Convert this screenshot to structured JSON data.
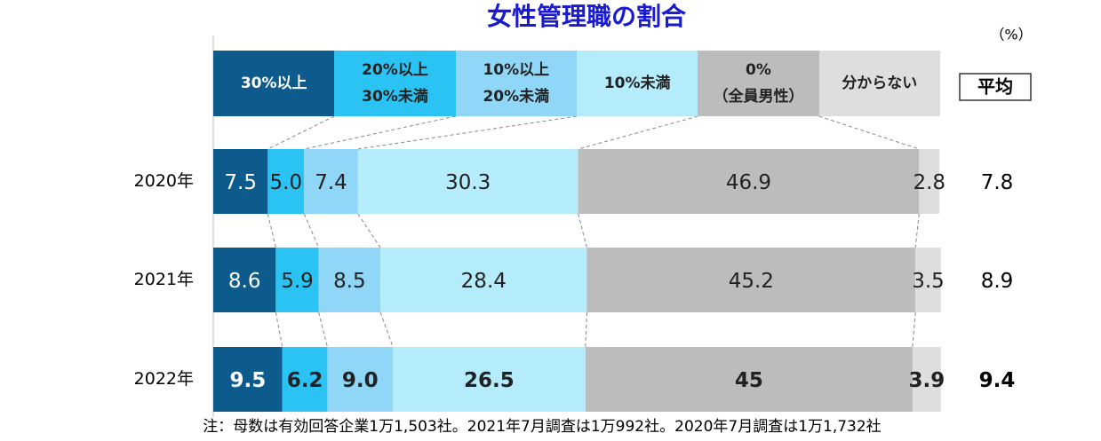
{
  "chart_data": {
    "type": "stacked_bar_100",
    "title": "女性管理職の割合",
    "unit": "（%）",
    "categories": [
      "2020年",
      "2021年",
      "2022年"
    ],
    "series": [
      {
        "name": "30%以上",
        "color": "#0d5a8c",
        "values": [
          7.5,
          8.6,
          9.5
        ],
        "value_labels": [
          "7.5",
          "8.6",
          "9.5"
        ]
      },
      {
        "name": "20%以上\n30%未満",
        "color": "#2bc3f4",
        "values": [
          5.0,
          5.9,
          6.2
        ],
        "value_labels": [
          "5.0",
          "5.9",
          "6.2"
        ]
      },
      {
        "name": "10%以上\n20%未満",
        "color": "#8fd6f7",
        "values": [
          7.4,
          8.5,
          9.0
        ],
        "value_labels": [
          "7.4",
          "8.5",
          "9.0"
        ]
      },
      {
        "name": "10%未満",
        "color": "#b4ecfb",
        "values": [
          30.3,
          28.4,
          26.5
        ]
      },
      {
        "name": "0%\n（全員男性）",
        "color": "#bcbcbc",
        "values": [
          46.9,
          45.2,
          45.0
        ]
      },
      {
        "name": "分からない",
        "color": "#dedede",
        "values": [
          2.8,
          3.5,
          3.9
        ]
      }
    ],
    "average_label": "平均",
    "averages": [
      7.8,
      8.9,
      9.4
    ],
    "xlim": [
      0,
      100
    ],
    "note": "注：母数は有効回答企業1万1,503社。2021年7月調査は1万992社。2020年7月調査は1万1,732社"
  }
}
